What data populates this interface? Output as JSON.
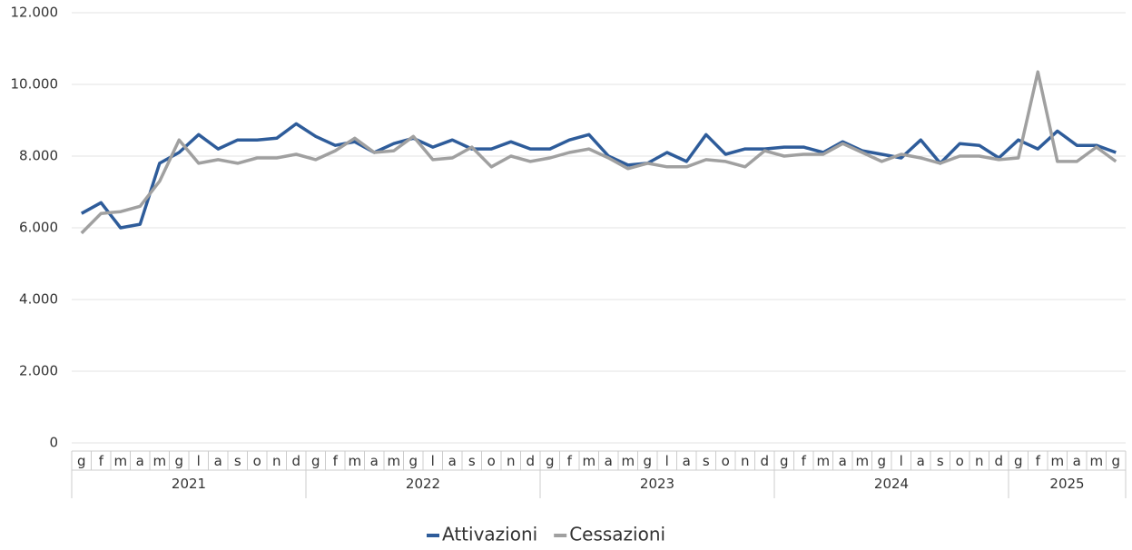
{
  "chart_data": {
    "type": "line",
    "groups": [
      {
        "label": "2021",
        "categories": [
          "g",
          "f",
          "m",
          "a",
          "m",
          "g",
          "l",
          "a",
          "s",
          "o",
          "n",
          "d"
        ]
      },
      {
        "label": "2022",
        "categories": [
          "g",
          "f",
          "m",
          "a",
          "m",
          "g",
          "l",
          "a",
          "s",
          "o",
          "n",
          "d"
        ]
      },
      {
        "label": "2023",
        "categories": [
          "g",
          "f",
          "m",
          "a",
          "m",
          "g",
          "l",
          "a",
          "s",
          "o",
          "n",
          "d"
        ]
      },
      {
        "label": "2024",
        "categories": [
          "g",
          "f",
          "m",
          "a",
          "m",
          "g",
          "l",
          "a",
          "s",
          "o",
          "n",
          "d"
        ]
      },
      {
        "label": "2025",
        "categories": [
          "g",
          "f",
          "m",
          "a",
          "m",
          "g"
        ]
      }
    ],
    "series": [
      {
        "name": "Attivazioni",
        "color": "#2e5c9a",
        "values": [
          6400,
          6700,
          6000,
          6100,
          7800,
          8100,
          8600,
          8200,
          8450,
          8450,
          8500,
          8900,
          8550,
          8300,
          8400,
          8100,
          8350,
          8500,
          8250,
          8450,
          8200,
          8200,
          8400,
          8200,
          8200,
          8450,
          8600,
          8000,
          7750,
          7800,
          8100,
          7850,
          8600,
          8050,
          8200,
          8200,
          8250,
          8250,
          8100,
          8400,
          8150,
          8050,
          7950,
          8450,
          7800,
          8350,
          8300,
          7950,
          8450,
          8200,
          8700,
          8300,
          8300,
          8100
        ]
      },
      {
        "name": "Cessazioni",
        "color": "#a0a0a0",
        "values": [
          5850,
          6400,
          6450,
          6600,
          7300,
          8450,
          7800,
          7900,
          7800,
          7950,
          7950,
          8050,
          7900,
          8150,
          8500,
          8100,
          8150,
          8550,
          7900,
          7950,
          8250,
          7700,
          8000,
          7850,
          7950,
          8100,
          8200,
          7950,
          7650,
          7800,
          7700,
          7700,
          7900,
          7850,
          7700,
          8150,
          8000,
          8050,
          8050,
          8350,
          8100,
          7850,
          8050,
          7950,
          7800,
          8000,
          8000,
          7900,
          7950,
          10350,
          7850,
          7850,
          8250,
          7850
        ]
      }
    ],
    "ylim": [
      0,
      12000
    ],
    "yticks": [
      0,
      {
        "value": 2000,
        "label": "2.000"
      },
      {
        "value": 4000,
        "label": "4.000"
      },
      {
        "value": 6000,
        "label": "6.000"
      },
      {
        "value": 8000,
        "label": "8.000"
      },
      {
        "value": 10000,
        "label": "10.000"
      },
      {
        "value": 12000,
        "label": "12.000"
      }
    ],
    "grid": true
  }
}
